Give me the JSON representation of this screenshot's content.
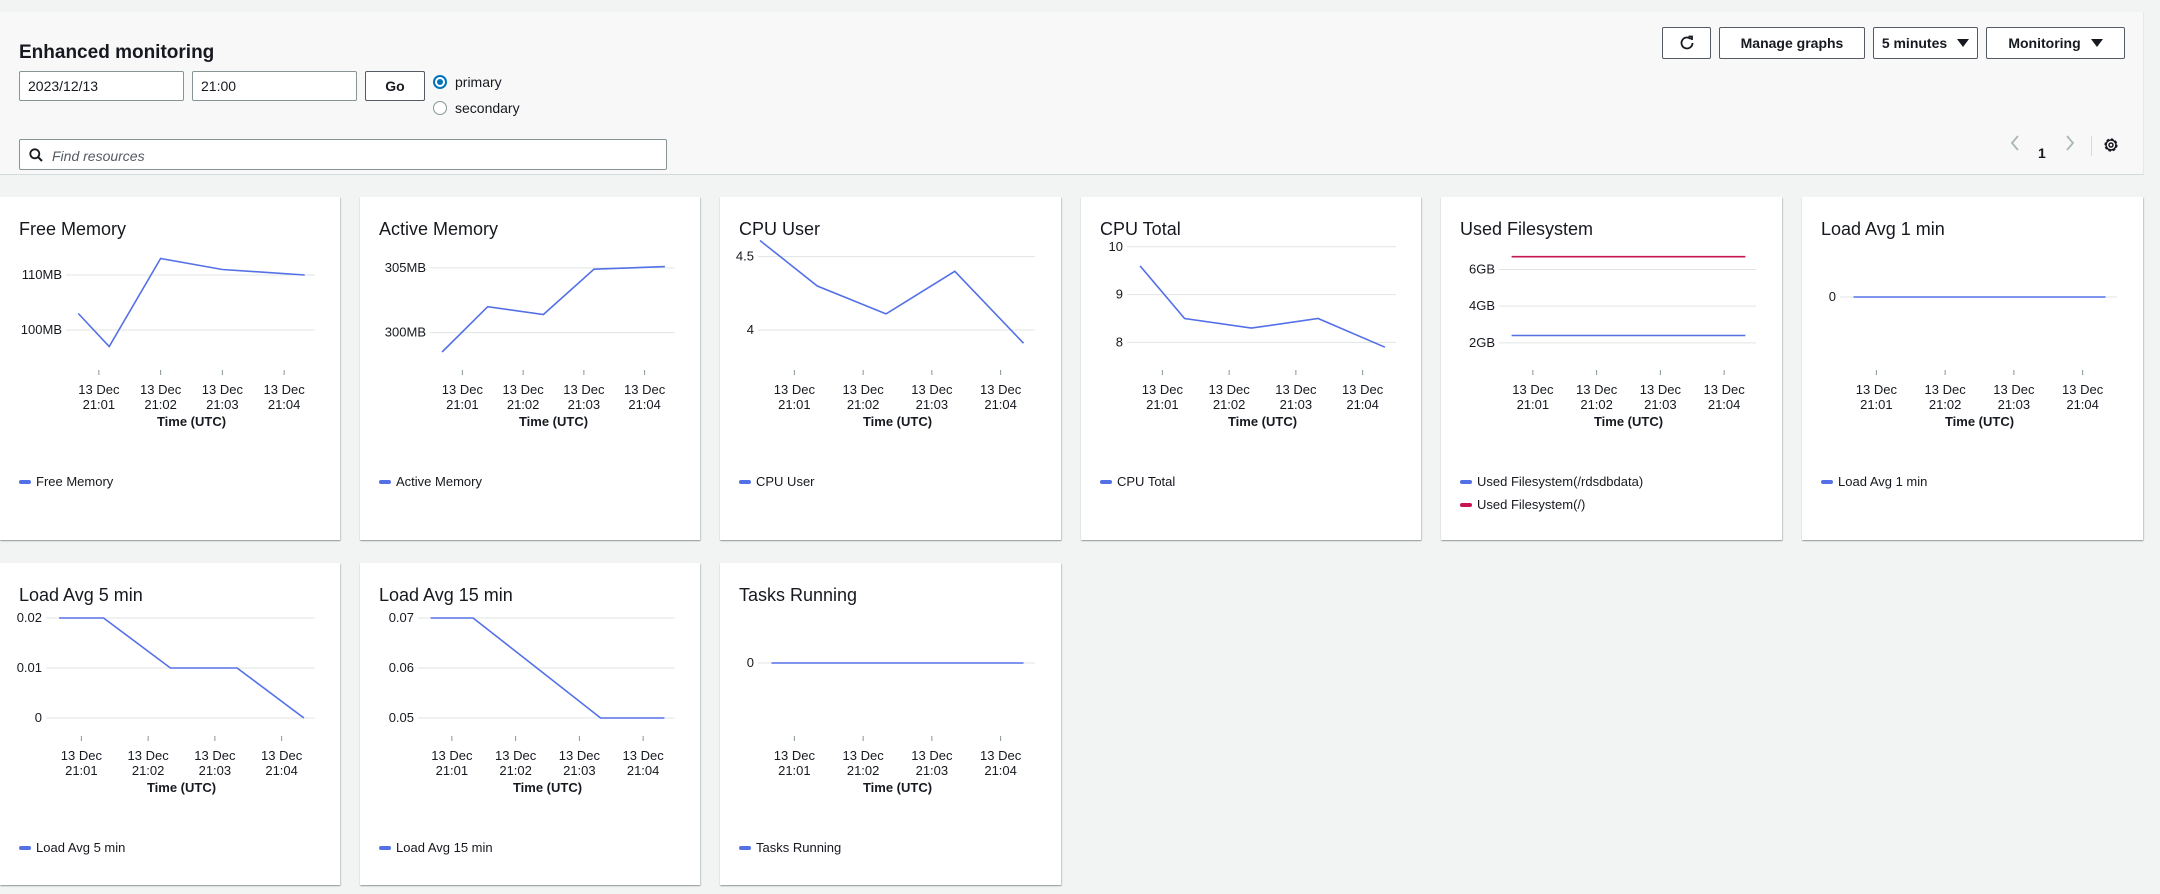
{
  "header": {
    "title": "Enhanced monitoring",
    "date_value": "2023/12/13",
    "time_value": "21:00",
    "go_label": "Go",
    "radios": [
      {
        "label": "primary",
        "checked": true
      },
      {
        "label": "secondary",
        "checked": false
      }
    ],
    "search_placeholder": "Find resources",
    "refresh_icon": "refresh-icon",
    "manage_graphs_label": "Manage graphs",
    "interval_label": "5 minutes",
    "monitoring_label": "Monitoring",
    "page_number": "1"
  },
  "colors": {
    "series_blue": "#5470e7",
    "series_red": "#c7164f",
    "accent": "#0073bb"
  },
  "x_axis": {
    "title": "Time (UTC)",
    "ticks": [
      {
        "line1": "13 Dec",
        "line2": "21:01"
      },
      {
        "line1": "13 Dec",
        "line2": "21:02"
      },
      {
        "line1": "13 Dec",
        "line2": "21:03"
      },
      {
        "line1": "13 Dec",
        "line2": "21:04"
      }
    ]
  },
  "chart_data": [
    {
      "type": "line",
      "title": "Free Memory",
      "x": [
        "21:00:40",
        "21:01:10",
        "21:02:00",
        "21:03:00",
        "21:04:20"
      ],
      "y_ticks": [
        "110MB",
        "100MB"
      ],
      "ylim": [
        96,
        116
      ],
      "series": [
        {
          "name": "Free Memory",
          "values": [
            103,
            97,
            113,
            111,
            110
          ]
        }
      ]
    },
    {
      "type": "line",
      "title": "Active Memory",
      "x": [
        "21:00:40",
        "21:01:25",
        "21:02:20",
        "21:03:10",
        "21:04:20"
      ],
      "y_ticks": [
        "305MB",
        "300MB"
      ],
      "ylim": [
        298.5,
        307
      ],
      "series": [
        {
          "name": "Active Memory",
          "values": [
            298.5,
            302,
            301.4,
            304.9,
            305.1
          ]
        }
      ]
    },
    {
      "type": "line",
      "title": "CPU User",
      "x": [
        "21:00:30",
        "21:01:20",
        "21:02:20",
        "21:03:20",
        "21:04:20"
      ],
      "y_ticks": [
        "4.5",
        "4"
      ],
      "ylim": [
        3.85,
        4.6
      ],
      "series": [
        {
          "name": "CPU User",
          "values": [
            4.61,
            4.3,
            4.11,
            4.4,
            3.91
          ]
        }
      ]
    },
    {
      "type": "line",
      "title": "CPU Total",
      "x": [
        "21:00:40",
        "21:01:20",
        "21:02:20",
        "21:03:20",
        "21:04:20"
      ],
      "y_ticks": [
        "10",
        "9",
        "8"
      ],
      "ylim": [
        7.8,
        10.1
      ],
      "series": [
        {
          "name": "CPU Total",
          "values": [
            9.6,
            8.5,
            8.3,
            8.5,
            7.9
          ]
        }
      ]
    },
    {
      "type": "line",
      "title": "Used Filesystem",
      "x": [
        "21:00:40",
        "21:04:20"
      ],
      "y_ticks": [
        "6GB",
        "4GB",
        "2GB"
      ],
      "ylim": [
        1.5,
        7.5
      ],
      "series": [
        {
          "name": "Used Filesystem(/rdsdbdata)",
          "values": [
            2.4,
            2.4
          ],
          "color": "#5470e7"
        },
        {
          "name": "Used Filesystem(/)",
          "values": [
            6.7,
            6.7
          ],
          "color": "#c7164f"
        }
      ]
    },
    {
      "type": "line",
      "title": "Load Avg 1 min",
      "x": [
        "21:00:40",
        "21:04:20"
      ],
      "y_ticks": [
        "0"
      ],
      "ylim": [
        -1,
        1
      ],
      "series": [
        {
          "name": "Load Avg 1 min",
          "values": [
            0,
            0
          ]
        }
      ]
    },
    {
      "type": "line",
      "title": "Load Avg 5 min",
      "x": [
        "21:00:40",
        "21:01:20",
        "21:02:20",
        "21:03:20",
        "21:04:20"
      ],
      "y_ticks": [
        "0.02",
        "0.01",
        "0"
      ],
      "ylim": [
        0,
        0.022
      ],
      "series": [
        {
          "name": "Load Avg 5 min",
          "values": [
            0.02,
            0.02,
            0.01,
            0.01,
            0
          ]
        }
      ]
    },
    {
      "type": "line",
      "title": "Load Avg 15 min",
      "x": [
        "21:00:40",
        "21:01:20",
        "21:02:20",
        "21:03:20",
        "21:04:20"
      ],
      "y_ticks": [
        "0.07",
        "0.06",
        "0.05"
      ],
      "ylim": [
        0.05,
        0.072
      ],
      "series": [
        {
          "name": "Load Avg 15 min",
          "values": [
            0.07,
            0.07,
            0.06,
            0.05,
            0.05
          ]
        }
      ]
    },
    {
      "type": "line",
      "title": "Tasks Running",
      "x": [
        "21:00:40",
        "21:04:20"
      ],
      "y_ticks": [
        "0"
      ],
      "ylim": [
        -1,
        1
      ],
      "series": [
        {
          "name": "Tasks Running",
          "values": [
            0,
            0
          ]
        }
      ]
    }
  ]
}
